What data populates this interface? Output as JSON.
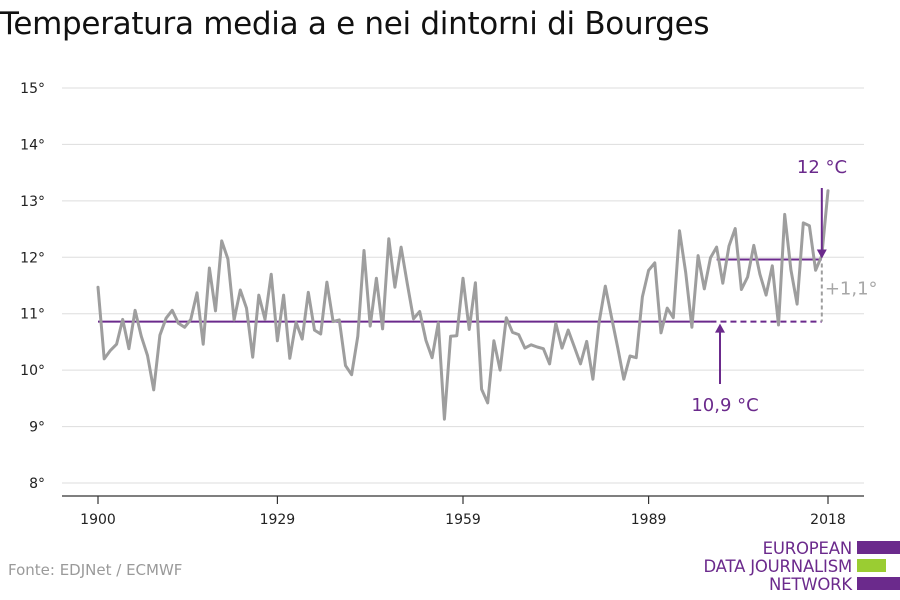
{
  "title": "Temperatura media a e nei dintorni di Bourges",
  "source": "Fonte: EDJNet / ECMWF",
  "logo": {
    "lines": [
      "EUROPEAN",
      "DATA JOURNALISM",
      "NETWORK"
    ],
    "colors": {
      "text": "#6b2a8c",
      "bar_purple": "#6b2a8c",
      "bar_green": "#9acd32"
    }
  },
  "colors": {
    "series": "#9e9e9e",
    "accent": "#6b2a8c",
    "grid": "#dddddd",
    "axis": "#333333"
  },
  "chart_data": {
    "type": "line",
    "title": "Temperatura media a e nei dintorni di Bourges",
    "xlabel": "",
    "ylabel": "",
    "xlim": [
      1900,
      2018
    ],
    "ylim": [
      8,
      15
    ],
    "x_ticks": [
      1900,
      1929,
      1959,
      1989,
      2018
    ],
    "y_ticks": [
      8,
      9,
      10,
      11,
      12,
      13,
      14,
      15
    ],
    "y_tick_suffix": "°",
    "grid": true,
    "series": [
      {
        "years": [
          1900,
          1901,
          1902,
          1903,
          1904,
          1905,
          1906,
          1907,
          1908,
          1909,
          1910,
          1911,
          1912,
          1913,
          1914,
          1915,
          1916,
          1917,
          1918,
          1919,
          1920,
          1921,
          1922,
          1923,
          1924,
          1925,
          1926,
          1927,
          1928,
          1929,
          1930,
          1931,
          1932,
          1933,
          1934,
          1935,
          1936,
          1937,
          1938,
          1939,
          1940,
          1941,
          1942,
          1943,
          1944,
          1945,
          1946,
          1947,
          1948,
          1949,
          1950,
          1951,
          1952,
          1953,
          1954,
          1955,
          1956,
          1957,
          1958,
          1959,
          1960,
          1961,
          1962,
          1963,
          1964,
          1965,
          1966,
          1967,
          1968,
          1969,
          1970,
          1971,
          1972,
          1973,
          1974,
          1975,
          1976,
          1977,
          1978,
          1979,
          1980,
          1981,
          1982,
          1983,
          1984,
          1985,
          1986,
          1987,
          1988,
          1989,
          1990,
          1991,
          1992,
          1993,
          1994,
          1995,
          1996,
          1997,
          1998,
          1999,
          2000,
          2001,
          2002,
          2003,
          2004,
          2005,
          2006,
          2007,
          2008,
          2009,
          2010,
          2011,
          2012,
          2013,
          2014,
          2015,
          2016,
          2017,
          2018
        ],
        "values": [
          11.47,
          10.2,
          10.35,
          10.46,
          10.9,
          10.38,
          11.06,
          10.6,
          10.26,
          9.65,
          10.62,
          10.92,
          11.06,
          10.83,
          10.76,
          10.9,
          11.37,
          10.46,
          11.81,
          11.05,
          12.29,
          11.97,
          10.89,
          11.42,
          11.1,
          10.23,
          11.33,
          10.9,
          11.7,
          10.52,
          11.33,
          10.21,
          10.85,
          10.55,
          11.38,
          10.71,
          10.64,
          11.56,
          10.86,
          10.89,
          10.08,
          9.92,
          10.6,
          12.12,
          10.78,
          11.63,
          10.73,
          12.33,
          11.47,
          12.18,
          11.53,
          10.91,
          11.04,
          10.53,
          10.22,
          10.84,
          9.13,
          10.6,
          10.61,
          11.63,
          10.72,
          11.55,
          9.66,
          9.42,
          10.52,
          10.0,
          10.93,
          10.67,
          10.63,
          10.39,
          10.45,
          10.41,
          10.38,
          10.11,
          10.83,
          10.39,
          10.71,
          10.41,
          10.11,
          10.51,
          9.84,
          10.85,
          11.49,
          10.94,
          10.4,
          9.84,
          10.25,
          10.22,
          11.3,
          11.77,
          11.9,
          10.66,
          11.1,
          10.93,
          12.47,
          11.73,
          10.76,
          12.03,
          11.44,
          11.99,
          12.18,
          11.54,
          12.2,
          12.51,
          11.43,
          11.65,
          12.21,
          11.7,
          11.33,
          11.85,
          10.8,
          12.76,
          11.78,
          11.17,
          12.61,
          12.56,
          11.77,
          12.03,
          13.18
        ]
      }
    ],
    "reference_lines": [
      {
        "label": "10,9 °C",
        "value": 10.86,
        "solid_from": 1900,
        "solid_to": 1999,
        "dashed_to": 2017
      },
      {
        "label": "12 °C",
        "value": 11.96,
        "from": 2000,
        "to": 2017
      }
    ],
    "difference": {
      "label": "+1,1°",
      "year": 2017,
      "from": 10.86,
      "to": 11.96
    }
  }
}
